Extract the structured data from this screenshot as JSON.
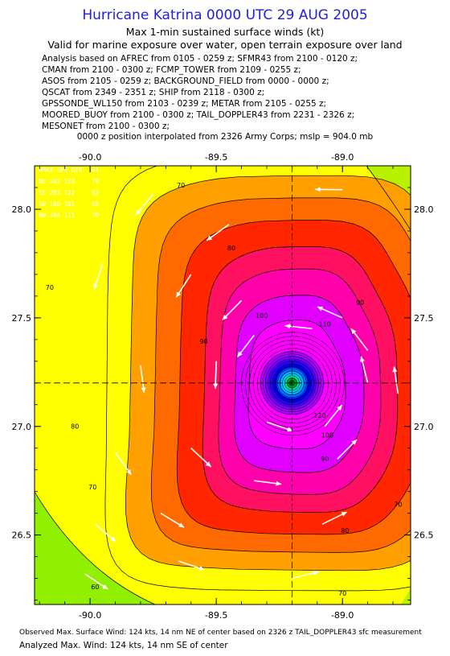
{
  "header": {
    "title": "Hurricane Katrina 0000 UTC 29 AUG 2005",
    "subtitle1": "Max 1-min sustained surface winds (kt)",
    "subtitle2": "Valid for marine exposure over water, open terrain exposure over land"
  },
  "sources": [
    "Analysis based on  AFREC from 0105 - 0259 z;  SFMR43 from 2100 - 0120 z;",
    "CMAN from 2100 - 0300 z;  FCMP_TOWER from 2109 - 0255 z;",
    "ASOS from 2105 - 0259 z;  BACKGROUND_FIELD from 0000 - 0000 z;",
    "QSCAT from 2349 - 2351 z;  SHIP from 2118 - 0300 z;",
    "GPSSONDE_WL150 from 2103 - 0239 z;  METAR from 2105 - 0255 z;",
    "MOORED_BUOY from 2100 - 0300 z;  TAIL_DOPPLER43 from 2231 - 2326 z;",
    "MESONET from 2100 - 0300 z;"
  ],
  "interpolation_note": "0000 z position interpolated from 2326 Army Corps; mslp = 904.0 mb",
  "footer": {
    "line1": "Observed Max. Surface Wind: 124 kts, 14 nm NE of center based on 2326 z TAIL_DOPPLER43 sfc measurement",
    "line2": "Analyzed Max. Wind: 124 kts, 14 nm SE of center"
  },
  "colors": {
    "title": "#1f1fe0",
    "contour_fill_ramp": [
      "#7cf000",
      "#ffff00",
      "#ffa000",
      "#ff6a00",
      "#ff2600",
      "#ff00aa",
      "#e100ff",
      "#ff00ff",
      "#b000ff",
      "#5a00ff",
      "#0000ff",
      "#00a6ff",
      "#006000"
    ],
    "wind_barb": "#ffffff"
  },
  "chart_data": {
    "type": "contour",
    "xlabel": "",
    "ylabel": "",
    "xlim": [
      -90.22,
      -88.73
    ],
    "ylim": [
      26.18,
      28.2
    ],
    "x_ticks": [
      "-90.0",
      "-89.5",
      "-89.0",
      "-88.5"
    ],
    "x_tick_values": [
      -90.0,
      -89.5,
      -89.0,
      -88.5
    ],
    "y_ticks": [
      "28.0",
      "27.5",
      "27.0",
      "26.5"
    ],
    "y_tick_values": [
      28.0,
      27.5,
      27.0,
      26.5
    ],
    "center": {
      "lon": -89.2,
      "lat": 27.2
    },
    "mslp_mb": 904.0,
    "contour_levels_kt": [
      60,
      70,
      80,
      90,
      100,
      110
    ],
    "contour_labels": [
      {
        "text": "70",
        "lon": -89.64,
        "lat": 28.1
      },
      {
        "text": "70",
        "lon": -90.16,
        "lat": 27.63
      },
      {
        "text": "70",
        "lon": -88.57,
        "lat": 27.81
      },
      {
        "text": "70",
        "lon": -89.99,
        "lat": 26.71
      },
      {
        "text": "70",
        "lon": -88.78,
        "lat": 26.63
      },
      {
        "text": "70",
        "lon": -89.0,
        "lat": 26.22
      },
      {
        "text": "80",
        "lon": -89.44,
        "lat": 27.81
      },
      {
        "text": "80",
        "lon": -88.69,
        "lat": 27.63
      },
      {
        "text": "80",
        "lon": -90.06,
        "lat": 26.99
      },
      {
        "text": "80",
        "lon": -88.99,
        "lat": 26.51
      },
      {
        "text": "90",
        "lon": -88.93,
        "lat": 27.56
      },
      {
        "text": "90",
        "lon": -89.55,
        "lat": 27.38
      },
      {
        "text": "90",
        "lon": -89.07,
        "lat": 26.84
      },
      {
        "text": "100",
        "lon": -89.32,
        "lat": 27.5
      },
      {
        "text": "100",
        "lon": -89.06,
        "lat": 26.95
      },
      {
        "text": "110",
        "lon": -89.07,
        "lat": 27.46
      },
      {
        "text": "120",
        "lon": -89.09,
        "lat": 27.04
      },
      {
        "text": "60",
        "lon": -89.98,
        "lat": 26.25
      }
    ],
    "legend": [
      {
        "label": "WMAX SPD DIR",
        "value": "64"
      },
      {
        "label": "NE 202 120",
        "value": "79"
      },
      {
        "label": "SE 203 122",
        "value": "82"
      },
      {
        "label": "SW 180 101",
        "value": "65"
      },
      {
        "label": "NW 184 111",
        "value": "79"
      }
    ],
    "grid": "dashed center crosshair",
    "wind_arrows_shown": true
  }
}
